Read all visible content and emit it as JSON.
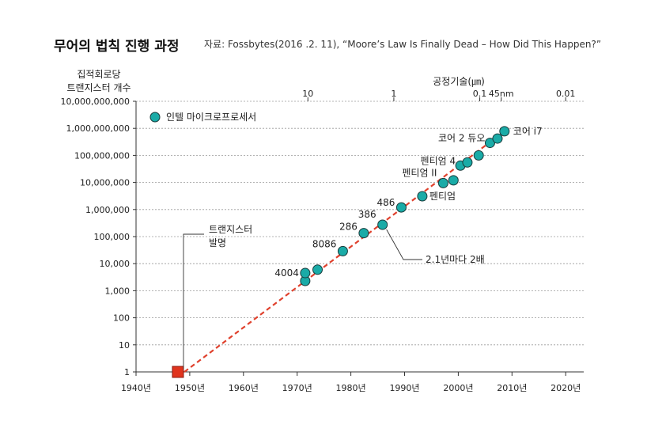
{
  "header": {
    "title": "무어의 법칙 진행 과정",
    "source": "자료: Fossbytes(2016 .2. 11), “Moore’s Law Is Finally Dead – How Did This Happen?”"
  },
  "chart_data": {
    "type": "scatter",
    "ylabel_lines": [
      "집적회로당",
      "트랜지스터 개수"
    ],
    "top_axis_label": "공정기술(㎛)",
    "y_scale": "log",
    "ylim": [
      1,
      10000000000
    ],
    "xlim": [
      1940,
      2023
    ],
    "x_ticks": [
      1940,
      1950,
      1960,
      1970,
      1980,
      1990,
      2000,
      2010,
      2020
    ],
    "x_tick_labels": [
      "1940년",
      "1950년",
      "1960년",
      "1970년",
      "1980년",
      "1990년",
      "2000년",
      "2010년",
      "2020년"
    ],
    "y_ticks": [
      1,
      10,
      100,
      1000,
      10000,
      100000,
      1000000,
      10000000,
      100000000,
      1000000000,
      10000000000
    ],
    "y_tick_labels": [
      "1",
      "10",
      "100",
      "1,000",
      "10,000",
      "100,000",
      "1,000,000",
      "10,000,000",
      "100,000,000",
      "1,000,000,000",
      "10,000,000,000"
    ],
    "top_ticks": [
      {
        "year": 1972,
        "label": "10"
      },
      {
        "year": 1988,
        "label": "1"
      },
      {
        "year": 2004,
        "label": "0.1"
      },
      {
        "year": 2008,
        "label": "45nm"
      },
      {
        "year": 2020,
        "label": "0.01"
      }
    ],
    "legend": {
      "label": "인텔 마이크로프로세서",
      "position": "top-left"
    },
    "colors": {
      "point": "#1aaba7",
      "point_edge": "#1a3a3a",
      "trend": "#e0412d",
      "origin": "#e0341e",
      "grid": "#9a9a9a"
    },
    "trend_line": {
      "from": [
        1949,
        1
      ],
      "to": [
        2009,
        900000000
      ],
      "label": "2.1년마다 2배"
    },
    "origin_point": {
      "x": 1947.8,
      "y": 1,
      "label_lines": [
        "트랜지스터",
        "발명"
      ]
    },
    "points": [
      {
        "x": 1971.5,
        "y": 2300
      },
      {
        "x": 1971.5,
        "y": 4500,
        "label": "4004"
      },
      {
        "x": 1973.8,
        "y": 6000
      },
      {
        "x": 1978.5,
        "y": 29000,
        "label": "8086"
      },
      {
        "x": 1982.4,
        "y": 134000,
        "label": "286"
      },
      {
        "x": 1985.9,
        "y": 275000,
        "label": "386"
      },
      {
        "x": 1989.4,
        "y": 1200000,
        "label": "486"
      },
      {
        "x": 1993.3,
        "y": 3100000,
        "label": "펜티엄"
      },
      {
        "x": 1997.2,
        "y": 9500000,
        "label": "펜티엄 II"
      },
      {
        "x": 1999.1,
        "y": 12000000
      },
      {
        "x": 2000.4,
        "y": 42000000,
        "label": "펜티엄 4"
      },
      {
        "x": 2001.7,
        "y": 55000000
      },
      {
        "x": 2003.8,
        "y": 100000000
      },
      {
        "x": 2005.9,
        "y": 290000000,
        "label": "코어 2 듀오"
      },
      {
        "x": 2007.3,
        "y": 420000000
      },
      {
        "x": 2008.6,
        "y": 780000000,
        "label": "코어 i7"
      }
    ]
  }
}
